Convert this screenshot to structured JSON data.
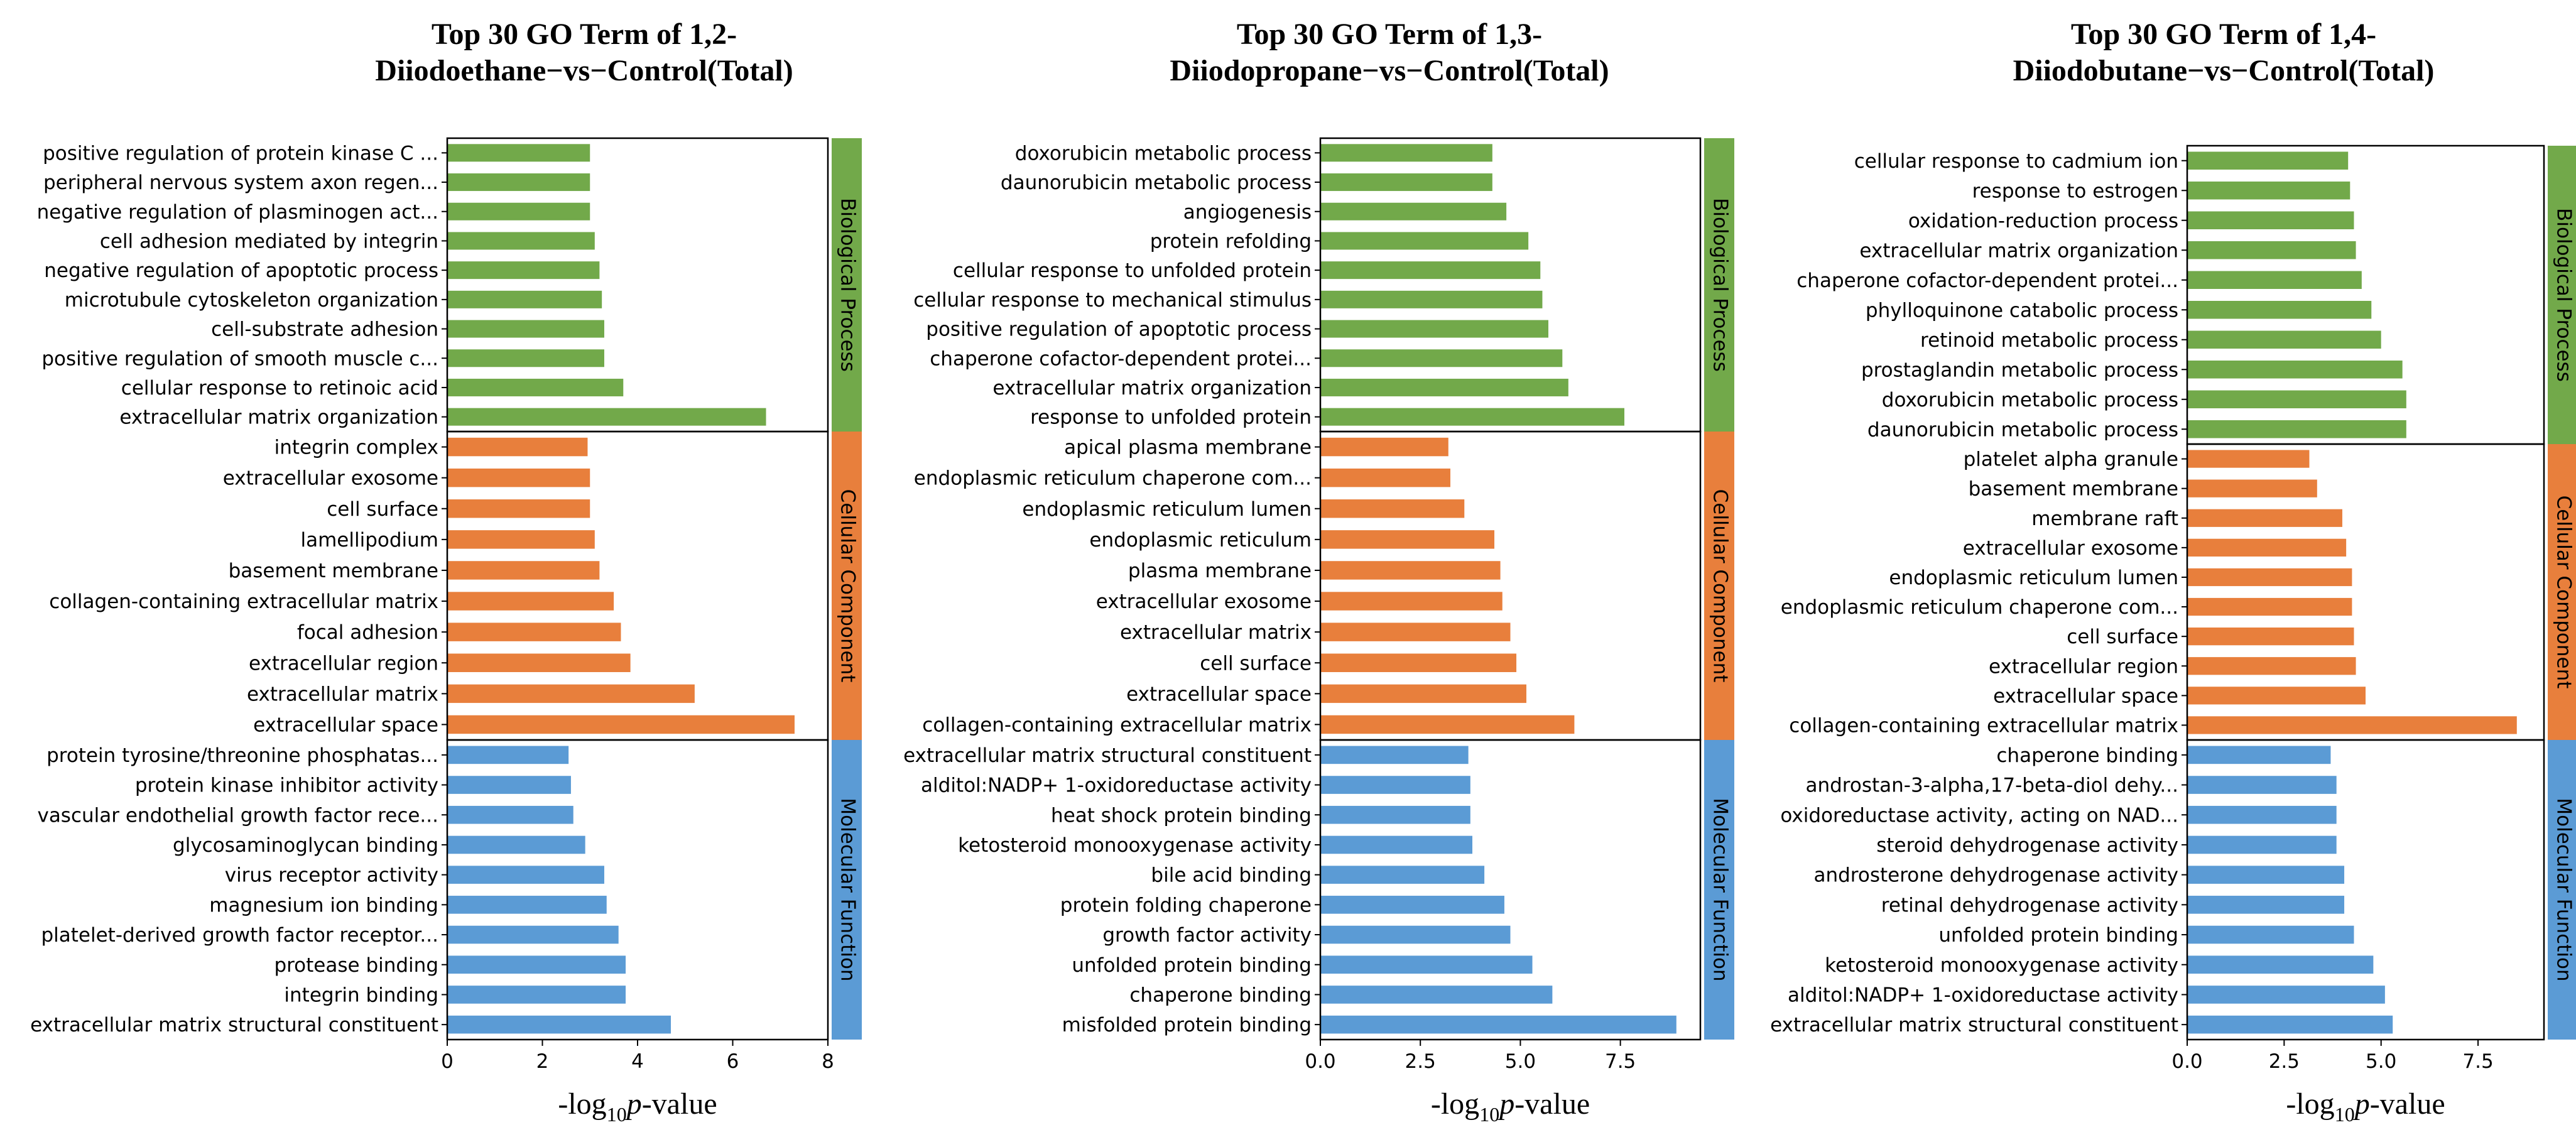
{
  "colors": {
    "biological_process": "#72a94a",
    "cellular_component": "#e87f3c",
    "molecular_function": "#5b9bd5"
  },
  "chart_data": [
    {
      "type": "bar",
      "orientation": "horizontal",
      "title_lines": [
        "Top 30 GO Term of 1,2-",
        "Diiodoethane−vs−Control(Total)"
      ],
      "xlabel_prefix": "-log",
      "xlabel_sub": "10",
      "xlabel_italic": "p",
      "xlabel_suffix": "-value",
      "xlim": [
        0,
        8
      ],
      "xticks": [
        0,
        2,
        4,
        6,
        8
      ],
      "xtick_labels": [
        "0",
        "2",
        "4",
        "6",
        "8"
      ],
      "groups": [
        {
          "name": "Biological Process",
          "color_key": "biological_process",
          "categories": [
            "positive regulation of protein kinase C ...",
            "peripheral nervous system axon regen...",
            "negative regulation of plasminogen act...",
            "cell adhesion mediated by integrin",
            "negative regulation of apoptotic process",
            "microtubule cytoskeleton organization",
            "cell-substrate adhesion",
            "positive regulation of smooth muscle c...",
            "cellular response to retinoic acid",
            "extracellular matrix organization"
          ],
          "values": [
            3.0,
            3.0,
            3.0,
            3.1,
            3.2,
            3.25,
            3.3,
            3.3,
            3.7,
            6.7
          ]
        },
        {
          "name": "Cellular Component",
          "color_key": "cellular_component",
          "categories": [
            "integrin complex",
            "extracellular exosome",
            "cell surface",
            "lamellipodium",
            "basement membrane",
            "collagen-containing extracellular matrix",
            "focal adhesion",
            "extracellular region",
            "extracellular matrix",
            "extracellular space"
          ],
          "values": [
            2.95,
            3.0,
            3.0,
            3.1,
            3.2,
            3.5,
            3.65,
            3.85,
            5.2,
            7.3
          ]
        },
        {
          "name": "Molecular Function",
          "color_key": "molecular_function",
          "categories": [
            "protein tyrosine/threonine phosphatas...",
            "protein kinase inhibitor activity",
            "vascular endothelial growth factor rece...",
            "glycosaminoglycan binding",
            "virus receptor activity",
            "magnesium ion binding",
            "platelet-derived growth factor receptor...",
            "protease binding",
            "integrin binding",
            "extracellular matrix structural constituent"
          ],
          "values": [
            2.55,
            2.6,
            2.65,
            2.9,
            3.3,
            3.35,
            3.6,
            3.75,
            3.75,
            4.7
          ]
        }
      ]
    },
    {
      "type": "bar",
      "orientation": "horizontal",
      "title_lines": [
        "Top 30 GO Term of 1,3-",
        "Diiodopropane−vs−Control(Total)"
      ],
      "xlabel_prefix": "-log",
      "xlabel_sub": "10",
      "xlabel_italic": "p",
      "xlabel_suffix": "-value",
      "xlim": [
        0,
        9.5
      ],
      "xticks": [
        0,
        2.5,
        5,
        7.5
      ],
      "xtick_labels": [
        "0.0",
        "2.5",
        "5.0",
        "7.5"
      ],
      "groups": [
        {
          "name": "Biological Process",
          "color_key": "biological_process",
          "categories": [
            "doxorubicin metabolic process",
            "daunorubicin metabolic process",
            "angiogenesis",
            "protein refolding",
            "cellular response to unfolded protein",
            "cellular response to mechanical stimulus",
            "positive regulation of apoptotic process",
            "chaperone cofactor-dependent protei...",
            "extracellular matrix organization",
            "response to unfolded protein"
          ],
          "values": [
            4.3,
            4.3,
            4.65,
            5.2,
            5.5,
            5.55,
            5.7,
            6.05,
            6.2,
            7.6
          ]
        },
        {
          "name": "Cellular Component",
          "color_key": "cellular_component",
          "categories": [
            "apical plasma membrane",
            "endoplasmic reticulum chaperone com...",
            "endoplasmic reticulum lumen",
            "endoplasmic reticulum",
            "plasma membrane",
            "extracellular exosome",
            "extracellular matrix",
            "cell surface",
            "extracellular space",
            "collagen-containing extracellular matrix"
          ],
          "values": [
            3.2,
            3.25,
            3.6,
            4.35,
            4.5,
            4.55,
            4.75,
            4.9,
            5.15,
            6.35
          ]
        },
        {
          "name": "Molecular Function",
          "color_key": "molecular_function",
          "categories": [
            "extracellular matrix structural constituent",
            "alditol:NADP+ 1-oxidoreductase activity",
            "heat shock protein binding",
            "ketosteroid monooxygenase activity",
            "bile acid binding",
            "protein folding chaperone",
            "growth factor activity",
            "unfolded protein binding",
            "chaperone binding",
            "misfolded protein binding"
          ],
          "values": [
            3.7,
            3.75,
            3.75,
            3.8,
            4.1,
            4.6,
            4.75,
            5.3,
            5.8,
            8.9
          ]
        }
      ]
    },
    {
      "type": "bar",
      "orientation": "horizontal",
      "title_lines": [
        "Top 30 GO Term of 1,4-",
        "Diiodobutane−vs−Control(Total)"
      ],
      "xlabel_prefix": "-log",
      "xlabel_sub": "10",
      "xlabel_italic": "p",
      "xlabel_suffix": "-value",
      "xlim": [
        0,
        9.2
      ],
      "xticks": [
        0,
        2.5,
        5,
        7.5
      ],
      "xtick_labels": [
        "0.0",
        "2.5",
        "5.0",
        "7.5"
      ],
      "groups": [
        {
          "name": "Biological Process",
          "color_key": "biological_process",
          "categories": [
            "cellular response to cadmium ion",
            "response to estrogen",
            "oxidation-reduction process",
            "extracellular matrix organization",
            "chaperone cofactor-dependent protei...",
            "phylloquinone catabolic process",
            "retinoid metabolic process",
            "prostaglandin metabolic process",
            "doxorubicin metabolic process",
            "daunorubicin metabolic process"
          ],
          "values": [
            4.15,
            4.2,
            4.3,
            4.35,
            4.5,
            4.75,
            5.0,
            5.55,
            5.65,
            5.65
          ]
        },
        {
          "name": "Cellular Component",
          "color_key": "cellular_component",
          "categories": [
            "platelet alpha granule",
            "basement membrane",
            "membrane raft",
            "extracellular exosome",
            "endoplasmic reticulum lumen",
            "endoplasmic reticulum chaperone com...",
            "cell surface",
            "extracellular region",
            "extracellular space",
            "collagen-containing extracellular matrix"
          ],
          "values": [
            3.15,
            3.35,
            4.0,
            4.1,
            4.25,
            4.25,
            4.3,
            4.35,
            4.6,
            8.5
          ]
        },
        {
          "name": "Molecular Function",
          "color_key": "molecular_function",
          "categories": [
            "chaperone binding",
            "androstan-3-alpha,17-beta-diol dehy...",
            "oxidoreductase activity, acting on NAD...",
            "steroid dehydrogenase activity",
            "androsterone dehydrogenase activity",
            "retinal dehydrogenase activity",
            "unfolded protein binding",
            "ketosteroid monooxygenase activity",
            "alditol:NADP+ 1-oxidoreductase activity",
            "extracellular matrix structural constituent"
          ],
          "values": [
            3.7,
            3.85,
            3.85,
            3.85,
            4.05,
            4.05,
            4.3,
            4.8,
            5.1,
            5.3
          ]
        }
      ]
    }
  ]
}
